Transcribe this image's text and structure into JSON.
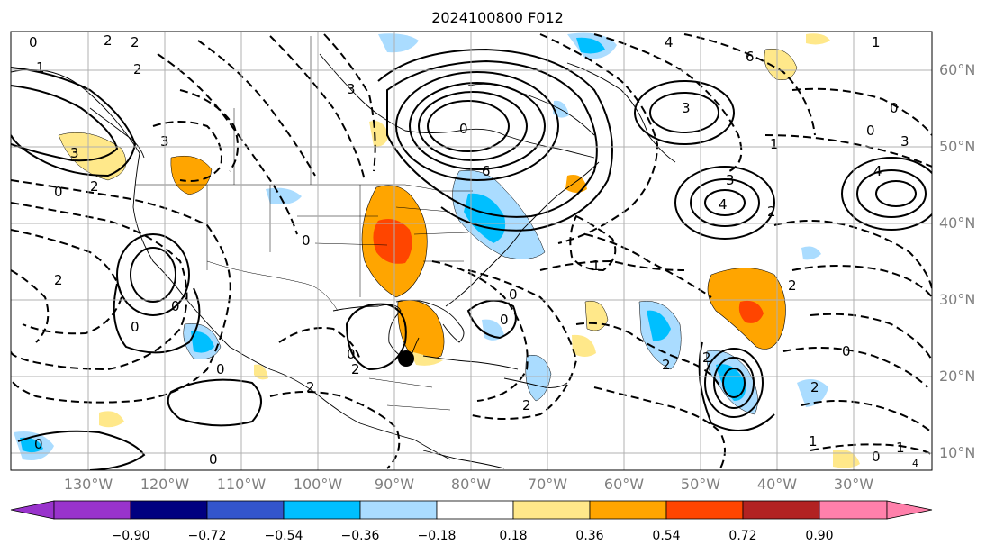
{
  "title": "2024100800 F012",
  "map": {
    "lon_labels": [
      "130°W",
      "120°W",
      "110°W",
      "100°W",
      "90°W",
      "80°W",
      "70°W",
      "60°W",
      "50°W",
      "40°W",
      "30°W"
    ],
    "lat_labels": [
      "60°N",
      "50°N",
      "40°N",
      "30°N",
      "20°N",
      "10°N"
    ],
    "marker": "storm-center-dot"
  },
  "colorbar": {
    "ticks": [
      "−0.90",
      "−0.72",
      "−0.54",
      "−0.36",
      "−0.18",
      "0.18",
      "0.36",
      "0.54",
      "0.72",
      "0.90"
    ],
    "colors": [
      "#9933cc",
      "#000080",
      "#3355cc",
      "#00bfff",
      "#aadcff",
      "#ffffff",
      "#ffe88a",
      "#ffa500",
      "#ff4500",
      "#b22222",
      "#ff80ab"
    ]
  },
  "colors": {
    "grid": "#b0b0b0",
    "contour": "#000000",
    "tick_label": "#7f7f7f"
  }
}
